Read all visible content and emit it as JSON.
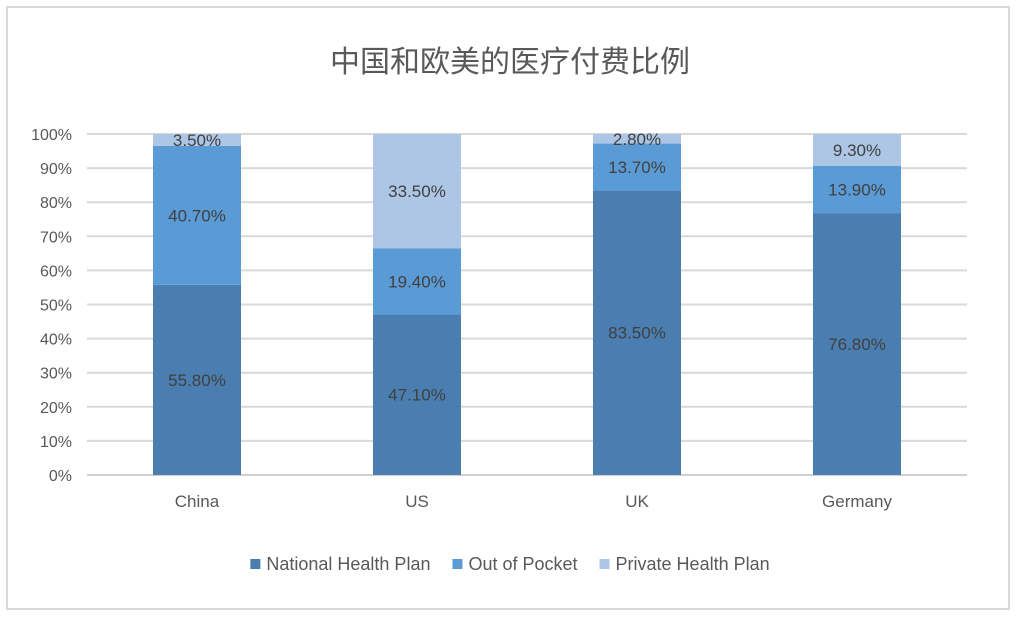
{
  "chart_data": {
    "type": "bar",
    "stacked": true,
    "title": "中国和欧美的医疗付费比例",
    "categories": [
      "China",
      "US",
      "UK",
      "Germany"
    ],
    "series": [
      {
        "name": "National Health Plan",
        "color": "#4a7eb0",
        "values": [
          55.8,
          47.1,
          83.5,
          76.8
        ],
        "labels": [
          "55.80%",
          "47.10%",
          "83.50%",
          "76.80%"
        ]
      },
      {
        "name": "Out of Pocket",
        "color": "#5b9bd5",
        "values": [
          40.7,
          19.4,
          13.7,
          13.9
        ],
        "labels": [
          "40.70%",
          "19.40%",
          "13.70%",
          "13.90%"
        ]
      },
      {
        "name": "Private Health Plan",
        "color": "#adc6e5",
        "values": [
          3.5,
          33.5,
          2.8,
          9.3
        ],
        "labels": [
          "3.50%",
          "33.50%",
          "2.80%",
          "9.30%"
        ]
      }
    ],
    "ylim": [
      0,
      100
    ],
    "yticks": [
      "0%",
      "10%",
      "20%",
      "30%",
      "40%",
      "50%",
      "60%",
      "70%",
      "80%",
      "90%",
      "100%"
    ],
    "grid": true,
    "legend_position": "bottom"
  }
}
